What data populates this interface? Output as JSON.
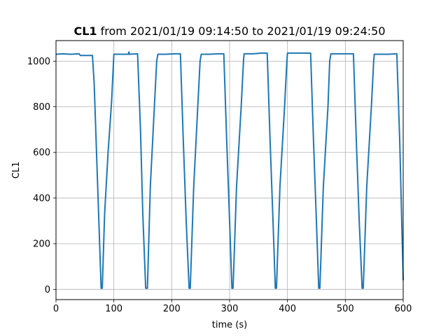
{
  "chart_data": {
    "type": "line",
    "title": {
      "bold": "CL1",
      "rest": " from 2021/01/19 09:14:50 to 2021/01/19 09:24:50"
    },
    "xlabel": "time (s)",
    "ylabel": "CL1",
    "xlim": [
      0,
      600
    ],
    "ylim": [
      -45,
      1090
    ],
    "xticks": [
      0,
      100,
      200,
      300,
      400,
      500,
      600
    ],
    "yticks": [
      0,
      200,
      400,
      600,
      800,
      1000
    ],
    "grid": true,
    "color": "#1f77b4",
    "series": [
      {
        "x": [
          0,
          12,
          25,
          40,
          42,
          50,
          60,
          63,
          66,
          78,
          80,
          84,
          90,
          96,
          100,
          110,
          125,
          126,
          127,
          140,
          141,
          146,
          150,
          155,
          158,
          163,
          170,
          174,
          176,
          190,
          205,
          213,
          215,
          220,
          225,
          230,
          232,
          238,
          245,
          249,
          251,
          265,
          280,
          288,
          290,
          295,
          300,
          304,
          306,
          312,
          320,
          324,
          325,
          340,
          355,
          363,
          365,
          370,
          375,
          379,
          381,
          387,
          395,
          399,
          400,
          415,
          430,
          438,
          440,
          445,
          450,
          454,
          456,
          462,
          470,
          473,
          475,
          490,
          505,
          512,
          514,
          519,
          524,
          529,
          531,
          537,
          545,
          549,
          550,
          560,
          575,
          587,
          589,
          594,
          600
        ],
        "y": [
          1030,
          1032,
          1030,
          1032,
          1025,
          1025,
          1025,
          1025,
          900,
          5,
          5,
          330,
          600,
          820,
          1030,
          1030,
          1030,
          1040,
          1030,
          1032,
          1032,
          700,
          330,
          5,
          5,
          450,
          800,
          1000,
          1030,
          1030,
          1032,
          1032,
          1032,
          650,
          300,
          5,
          5,
          450,
          800,
          1000,
          1030,
          1030,
          1032,
          1032,
          1032,
          650,
          300,
          5,
          5,
          450,
          800,
          1000,
          1032,
          1032,
          1035,
          1035,
          1035,
          650,
          300,
          5,
          5,
          450,
          800,
          1000,
          1035,
          1035,
          1035,
          1035,
          1035,
          650,
          300,
          5,
          5,
          450,
          800,
          1000,
          1032,
          1032,
          1032,
          1032,
          1032,
          650,
          300,
          5,
          5,
          450,
          800,
          1000,
          1030,
          1030,
          1030,
          1032,
          1032,
          650,
          40
        ]
      }
    ]
  }
}
